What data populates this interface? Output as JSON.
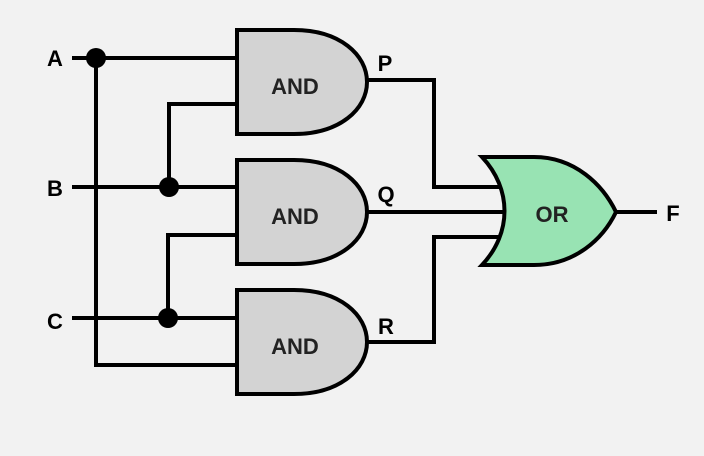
{
  "inputs": {
    "a": "A",
    "b": "B",
    "c": "C"
  },
  "gates": {
    "and1": "AND",
    "and2": "AND",
    "and3": "AND",
    "or": "OR"
  },
  "outputs": {
    "p": "P",
    "q": "Q",
    "r": "R",
    "f": "F"
  },
  "colors": {
    "and_fill": "#d3d3d3",
    "or_fill": "#98e3b3",
    "wire": "#000000",
    "background": "#f2f2f2"
  }
}
